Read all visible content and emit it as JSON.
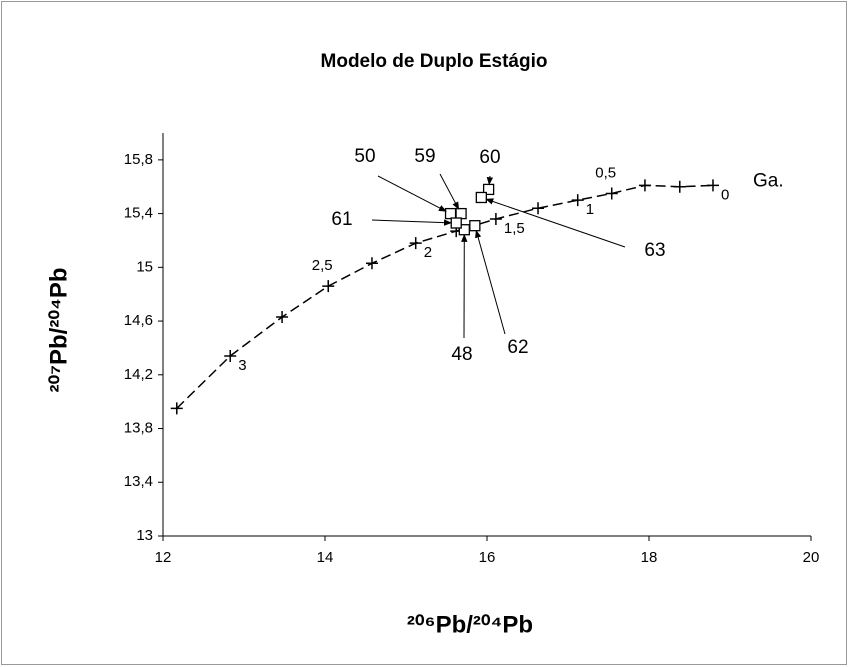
{
  "chart_data": {
    "type": "scatter",
    "title": "Modelo de Duplo Estágio",
    "x_label": "²⁰⁶Pb/²⁰⁴Pb",
    "y_label": "²⁰⁷Pb/²⁰⁴Pb",
    "xlim": [
      12,
      20
    ],
    "xticks": [
      12,
      14,
      16,
      18,
      20
    ],
    "ylim": [
      13,
      16
    ],
    "yticks": [
      13,
      {
        "value": 13.4,
        "label": "13,4"
      },
      {
        "value": 13.8,
        "label": "13,8"
      },
      {
        "value": 14.2,
        "label": "14,2"
      },
      {
        "value": 14.6,
        "label": "14,6"
      },
      15,
      {
        "value": 15.4,
        "label": "15,4"
      },
      {
        "value": 15.8,
        "label": "15,8"
      }
    ],
    "curve": {
      "x": [
        12.17,
        12.83,
        13.47,
        14.04,
        14.58,
        15.12,
        15.62,
        16.11,
        16.63,
        17.12,
        17.54,
        17.95,
        18.38,
        18.79
      ],
      "values": [
        13.95,
        14.34,
        14.63,
        14.86,
        15.03,
        15.18,
        15.27,
        15.36,
        15.44,
        15.5,
        15.55,
        15.61,
        15.6,
        15.61
      ],
      "point_labels": [
        null,
        "3",
        null,
        "2,5",
        null,
        "2",
        null,
        "1,5",
        null,
        "1",
        "0,5",
        null,
        null,
        "0"
      ],
      "color": "#000000"
    },
    "curve_annotation": "Ga.",
    "samples": {
      "labels": [
        "48",
        "50",
        "59",
        "60",
        "61",
        "62",
        "63"
      ],
      "x": [
        15.72,
        15.55,
        15.68,
        16.02,
        15.62,
        15.85,
        15.93
      ],
      "values": [
        15.28,
        15.4,
        15.4,
        15.58,
        15.33,
        15.31,
        15.52
      ],
      "color": "#000000"
    }
  }
}
